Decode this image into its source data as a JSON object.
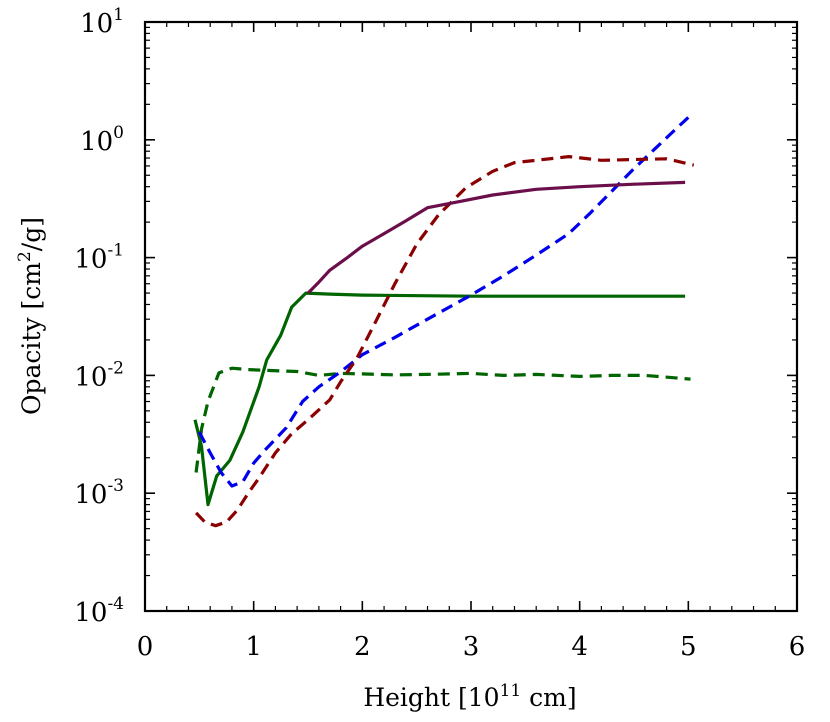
{
  "chart_data": {
    "type": "line",
    "title": "",
    "xlabel_parts": [
      "Height [10",
      "11",
      " cm]"
    ],
    "ylabel_parts": [
      "Opacity [cm",
      "2",
      "/g]"
    ],
    "xlim": [
      0,
      6
    ],
    "ylim": [
      0.0001,
      10
    ],
    "yscale": "log",
    "grid": false,
    "legend": "none",
    "x_ticks": [
      0,
      1,
      2,
      3,
      4,
      5,
      6
    ],
    "y_ticks": [
      {
        "value": 0.0001,
        "base": "10",
        "exp": "-4"
      },
      {
        "value": 0.001,
        "base": "10",
        "exp": "-3"
      },
      {
        "value": 0.01,
        "base": "10",
        "exp": "-2"
      },
      {
        "value": 0.1,
        "base": "10",
        "exp": "-1"
      },
      {
        "value": 1,
        "base": "10",
        "exp": "0"
      },
      {
        "value": 10,
        "base": "10",
        "exp": "1"
      }
    ],
    "series": [
      {
        "color": "#006400",
        "dash": "solid",
        "points": [
          [
            0.46,
            0.0042
          ],
          [
            0.52,
            0.0025
          ],
          [
            0.58,
            0.0008
          ],
          [
            0.66,
            0.0014
          ],
          [
            0.78,
            0.0019
          ],
          [
            0.9,
            0.0033
          ],
          [
            1.05,
            0.008
          ],
          [
            1.12,
            0.0135
          ],
          [
            1.25,
            0.022
          ],
          [
            1.35,
            0.038
          ],
          [
            1.48,
            0.05
          ],
          [
            1.7,
            0.049
          ],
          [
            2.0,
            0.048
          ],
          [
            3.0,
            0.047
          ],
          [
            4.0,
            0.047
          ],
          [
            4.97,
            0.047
          ]
        ]
      },
      {
        "color": "#006400",
        "dash": "dashed",
        "points": [
          [
            0.47,
            0.0015
          ],
          [
            0.52,
            0.0035
          ],
          [
            0.58,
            0.006
          ],
          [
            0.68,
            0.0105
          ],
          [
            0.8,
            0.0115
          ],
          [
            0.95,
            0.0112
          ],
          [
            1.15,
            0.011
          ],
          [
            1.4,
            0.0108
          ],
          [
            1.6,
            0.01
          ],
          [
            1.8,
            0.0104
          ],
          [
            2.0,
            0.0103
          ],
          [
            2.3,
            0.0101
          ],
          [
            2.6,
            0.0102
          ],
          [
            3.0,
            0.0104
          ],
          [
            3.3,
            0.01
          ],
          [
            3.6,
            0.0102
          ],
          [
            4.0,
            0.0098
          ],
          [
            4.3,
            0.01
          ],
          [
            4.6,
            0.01
          ],
          [
            5.02,
            0.0093
          ]
        ]
      },
      {
        "color": "#0000ee",
        "dash": "dashed",
        "points": [
          [
            0.5,
            0.0033
          ],
          [
            0.6,
            0.0022
          ],
          [
            0.7,
            0.0015
          ],
          [
            0.8,
            0.00115
          ],
          [
            0.9,
            0.00125
          ],
          [
            1.0,
            0.0018
          ],
          [
            1.1,
            0.0023
          ],
          [
            1.3,
            0.0036
          ],
          [
            1.45,
            0.006
          ],
          [
            1.6,
            0.008
          ],
          [
            1.8,
            0.0107
          ],
          [
            2.0,
            0.015
          ],
          [
            2.3,
            0.021
          ],
          [
            2.6,
            0.03
          ],
          [
            3.0,
            0.048
          ],
          [
            3.3,
            0.07
          ],
          [
            3.6,
            0.105
          ],
          [
            3.9,
            0.16
          ],
          [
            4.1,
            0.24
          ],
          [
            4.3,
            0.37
          ],
          [
            4.5,
            0.57
          ],
          [
            4.7,
            0.85
          ],
          [
            4.85,
            1.15
          ],
          [
            5.0,
            1.55
          ]
        ]
      },
      {
        "color": "#8b0000",
        "dash": "dashed",
        "points": [
          [
            0.47,
            0.00068
          ],
          [
            0.55,
            0.00057
          ],
          [
            0.65,
            0.00053
          ],
          [
            0.75,
            0.00057
          ],
          [
            0.85,
            0.00072
          ],
          [
            0.95,
            0.001
          ],
          [
            1.05,
            0.00135
          ],
          [
            1.2,
            0.0022
          ],
          [
            1.35,
            0.0032
          ],
          [
            1.5,
            0.0042
          ],
          [
            1.6,
            0.0051
          ],
          [
            1.7,
            0.0062
          ],
          [
            1.8,
            0.0088
          ],
          [
            1.95,
            0.014
          ],
          [
            2.1,
            0.026
          ],
          [
            2.3,
            0.06
          ],
          [
            2.5,
            0.13
          ],
          [
            2.7,
            0.23
          ],
          [
            2.95,
            0.39
          ],
          [
            3.2,
            0.54
          ],
          [
            3.4,
            0.64
          ],
          [
            3.6,
            0.67
          ],
          [
            3.9,
            0.72
          ],
          [
            4.2,
            0.67
          ],
          [
            4.5,
            0.68
          ],
          [
            4.8,
            0.69
          ],
          [
            5.05,
            0.61
          ]
        ]
      },
      {
        "color": "#6b0f4a",
        "dash": "solid",
        "points": [
          [
            1.5,
            0.05
          ],
          [
            1.6,
            0.062
          ],
          [
            1.7,
            0.078
          ],
          [
            1.85,
            0.098
          ],
          [
            2.0,
            0.125
          ],
          [
            2.2,
            0.16
          ],
          [
            2.4,
            0.205
          ],
          [
            2.6,
            0.265
          ],
          [
            2.9,
            0.3
          ],
          [
            3.2,
            0.34
          ],
          [
            3.6,
            0.38
          ],
          [
            4.0,
            0.4
          ],
          [
            4.5,
            0.42
          ],
          [
            4.97,
            0.435
          ]
        ]
      }
    ]
  }
}
